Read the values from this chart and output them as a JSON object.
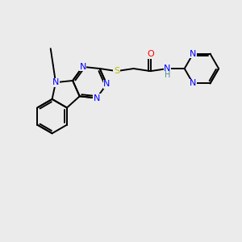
{
  "background_color": "#ebebeb",
  "atom_colors": {
    "N": "#0000ff",
    "O": "#ff0000",
    "S": "#b8b800",
    "C": "#000000",
    "H": "#4a8f8f"
  },
  "bond_width": 1.4,
  "font_size_atoms": 8.0,
  "font_size_H": 7.0,
  "figsize": [
    3.0,
    3.0
  ],
  "dpi": 100
}
